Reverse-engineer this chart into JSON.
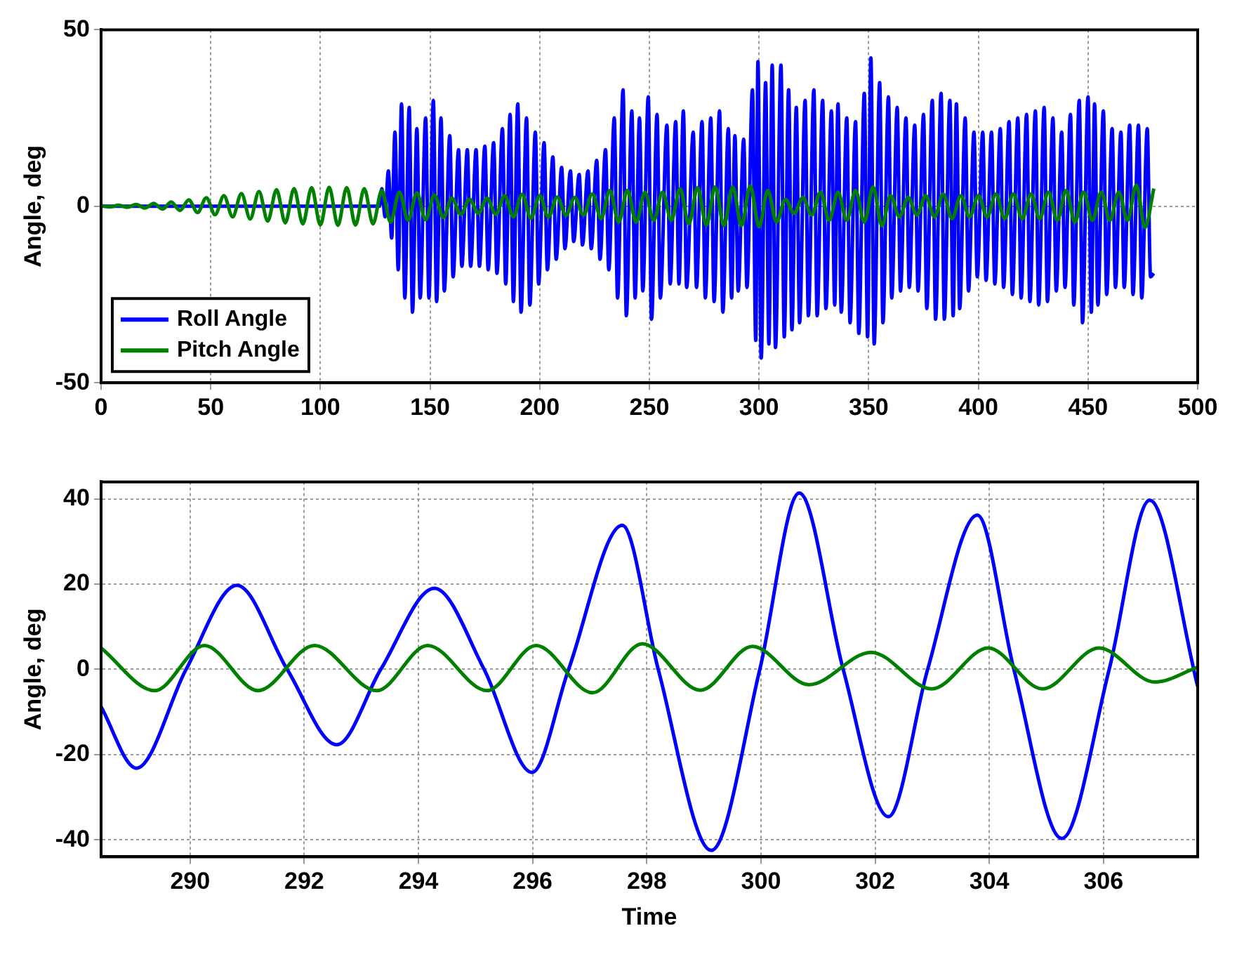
{
  "chart_data": [
    {
      "type": "line",
      "ylabel": "Angle, deg",
      "xlim": [
        0,
        500
      ],
      "ylim": [
        -50,
        50
      ],
      "xticks": [
        0,
        50,
        100,
        150,
        200,
        250,
        300,
        350,
        400,
        450,
        500
      ],
      "yticks": [
        -50,
        0,
        50
      ],
      "grid": true,
      "legend": "bottom left",
      "series": [
        {
          "name": "Roll Angle",
          "color": "#0000ff",
          "x": [
            0,
            127,
            128,
            129.5,
            131,
            132.5,
            134,
            135.5,
            137,
            138.5,
            140.5,
            142,
            144,
            145.5,
            148,
            149.5,
            151.5,
            153,
            155,
            156.5,
            159,
            160.5,
            163,
            164.5,
            167,
            168.5,
            171,
            172.5,
            175,
            176.5,
            179,
            180.5,
            183,
            184.5,
            186.5,
            188,
            190,
            191.5,
            194,
            195.5,
            198,
            199.5,
            202,
            203.5,
            206,
            207.5,
            210,
            211.5,
            214,
            215.5,
            218,
            219.5,
            222,
            223.5,
            226,
            227.5,
            230,
            231.5,
            234,
            235.5,
            238,
            239.5,
            242,
            243.5,
            245.5,
            247,
            249.5,
            251,
            253.5,
            255,
            258,
            259.5,
            262,
            263.5,
            265.5,
            267,
            270,
            271.5,
            274,
            275.5,
            278,
            279.5,
            282,
            283.5,
            286,
            287.5,
            289,
            290.5,
            293,
            294.5,
            297,
            298.5,
            299.5,
            301,
            303,
            304.5,
            306,
            307.5,
            310,
            311.5,
            313.5,
            315,
            317,
            318.5,
            321,
            322.5,
            325,
            326.5,
            329,
            330.5,
            333,
            334.5,
            336,
            337.5,
            340,
            341.5,
            344,
            345.5,
            348,
            349.5,
            351,
            352.5,
            355,
            356.5,
            359,
            360.5,
            363,
            364.5,
            367,
            368.5,
            371,
            372.5,
            375,
            376.5,
            379,
            380.5,
            383,
            384.5,
            387,
            388.5,
            390,
            391.5,
            394,
            395.5,
            398,
            399.5,
            402,
            403.5,
            406,
            407.5,
            410,
            411.5,
            414,
            415.5,
            418,
            419.5,
            422,
            423.5,
            426,
            427.5,
            430,
            431.5,
            434,
            435.5,
            438,
            439.5,
            442,
            443.5,
            446,
            447.5,
            450,
            451.5,
            453,
            454.5,
            457,
            458.5,
            461,
            462.5,
            465,
            466.5,
            469,
            470.5,
            473,
            474.5,
            477,
            478.5,
            480
          ],
          "values": [
            0,
            0,
            5,
            -3,
            10,
            -9,
            21,
            -18,
            29,
            -26,
            28,
            -30,
            22,
            -26,
            25,
            -26,
            30,
            -27,
            25,
            -24,
            20,
            -20,
            16,
            -17,
            16,
            -17,
            16,
            -17,
            17,
            -18,
            18,
            -19,
            22,
            -22,
            26,
            -27,
            29,
            -30,
            25,
            -28,
            21,
            -22,
            18,
            -18,
            14,
            -15,
            11,
            -12,
            10,
            -10,
            9,
            -11,
            10,
            -12,
            13,
            -15,
            16,
            -18,
            25,
            -26,
            33,
            -31,
            27,
            -26,
            25,
            -24,
            31,
            -32,
            26,
            -26,
            23,
            -22,
            24,
            -22,
            27,
            -23,
            21,
            -23,
            24,
            -26,
            25,
            -27,
            27,
            -30,
            22,
            -26,
            20,
            -24,
            19,
            -23,
            33,
            -38,
            41,
            -43,
            35,
            -39,
            40,
            -40,
            40,
            -37,
            33,
            -35,
            28,
            -33,
            30,
            -31,
            33,
            -31,
            30,
            -29,
            27,
            -28,
            29,
            -30,
            25,
            -33,
            24,
            -36,
            32,
            -37,
            42,
            -39,
            35,
            -33,
            31,
            -26,
            28,
            -24,
            25,
            -23,
            23,
            -24,
            26,
            -29,
            30,
            -32,
            32,
            -32,
            30,
            -31,
            29,
            -29,
            25,
            -24,
            21,
            -20,
            21,
            -21,
            21,
            -22,
            22,
            -23,
            24,
            -25,
            25,
            -26,
            26,
            -27,
            27,
            -28,
            28,
            -27,
            25,
            -24,
            21,
            -23,
            26,
            -28,
            30,
            -33,
            31,
            -30,
            29,
            -28,
            27,
            -25,
            22,
            -23,
            21,
            -23,
            23,
            -25,
            23,
            -26,
            22,
            -20,
            -19
          ]
        },
        {
          "name": "Pitch Angle",
          "color": "#008000",
          "x": [
            0,
            4,
            8,
            12,
            16,
            20,
            24,
            28,
            32,
            36,
            40,
            44,
            48,
            52,
            56,
            60,
            64,
            68,
            72,
            76,
            80,
            84,
            88,
            92,
            96,
            100,
            104,
            108,
            112,
            116,
            120,
            124,
            128,
            132,
            136,
            140,
            144,
            148,
            152,
            156,
            160,
            164,
            168,
            172,
            176,
            180,
            184,
            188,
            192,
            196,
            200,
            204,
            208,
            212,
            216,
            220,
            224,
            228,
            232,
            236,
            240,
            244,
            248,
            252,
            256,
            260,
            264,
            268,
            272,
            276,
            280,
            284,
            288,
            292,
            296,
            300,
            304,
            308,
            312,
            316,
            320,
            324,
            328,
            332,
            336,
            340,
            344,
            348,
            352,
            356,
            360,
            364,
            368,
            372,
            376,
            380,
            384,
            388,
            392,
            396,
            400,
            404,
            408,
            412,
            416,
            420,
            424,
            428,
            432,
            436,
            440,
            444,
            448,
            452,
            456,
            460,
            464,
            468,
            472,
            476,
            480
          ],
          "values": [
            0.2,
            -0.2,
            0.3,
            -0.3,
            0.5,
            -0.5,
            0.8,
            -0.8,
            1.2,
            -1.2,
            1.8,
            -1.8,
            2.4,
            -2.4,
            3,
            -3,
            3.6,
            -3.6,
            4.2,
            -4.2,
            4.7,
            -4.7,
            5,
            -5,
            5.3,
            -5.3,
            5.4,
            -5.4,
            5.3,
            -5.3,
            5,
            -5,
            4.5,
            -4.5,
            4,
            -4,
            3.8,
            -3.8,
            3.2,
            -3.2,
            2.3,
            -2.3,
            2,
            -2,
            2.3,
            -2.3,
            3,
            -3,
            3.4,
            -3.4,
            3,
            -3,
            2.6,
            -2.6,
            2.5,
            -2.5,
            3.5,
            -3.5,
            4.5,
            -4.5,
            4.5,
            -4.5,
            4,
            -4,
            4,
            -4,
            5,
            -5,
            5.3,
            -5.3,
            5.5,
            -5.5,
            5.5,
            -5.5,
            5.8,
            -5.8,
            4.5,
            -4.5,
            2,
            -2,
            2.5,
            -2.5,
            4,
            -4,
            4,
            -4,
            4.5,
            -4.5,
            5.5,
            -5.5,
            3,
            -3,
            2.5,
            -2.5,
            3,
            -3,
            3.5,
            -3.5,
            3,
            -3,
            3,
            -3,
            3.5,
            -3.5,
            3.5,
            -3.5,
            3.5,
            -3.5,
            4,
            -4,
            4.5,
            -4.5,
            4,
            -4,
            4,
            -4,
            4,
            -4,
            6,
            -6,
            5
          ]
        }
      ]
    },
    {
      "type": "line",
      "xlabel": "Time",
      "ylabel": "Angle, deg",
      "xlim": [
        288.44,
        307.65
      ],
      "ylim": [
        -44,
        44
      ],
      "xticks": [
        290,
        292,
        294,
        296,
        298,
        300,
        302,
        304,
        306
      ],
      "yticks": [
        -40,
        -20,
        0,
        20,
        40
      ],
      "grid": true,
      "series": [
        {
          "color": "#0000ff",
          "x": [
            288.44,
            289.06,
            289.93,
            290.82,
            291.7,
            292.57,
            293.34,
            294.28,
            295.15,
            295.99,
            296.63,
            297.57,
            298.2,
            299.13,
            299.98,
            300.67,
            301.44,
            302.23,
            302.92,
            303.79,
            304.43,
            305.27,
            306.1,
            306.81,
            307.65
          ],
          "values": [
            -8.8,
            -23.2,
            0,
            19.7,
            0,
            -17.7,
            0,
            19,
            0,
            -24.2,
            0,
            33.8,
            0,
            -42.5,
            0,
            41.4,
            0,
            -34.6,
            0,
            36.2,
            0,
            -39.7,
            0,
            39.7,
            -4
          ]
        },
        {
          "color": "#008000",
          "x": [
            288.44,
            289.38,
            290.25,
            291.19,
            292.18,
            293.27,
            294.16,
            295.2,
            296.06,
            297.05,
            297.92,
            298.94,
            299.85,
            300.84,
            301.93,
            302.99,
            303.98,
            304.93,
            305.92,
            306.9,
            307.65
          ],
          "values": [
            5,
            -5,
            5.6,
            -5,
            5.6,
            -5,
            5.6,
            -5,
            5.6,
            -5.5,
            6,
            -4.9,
            5.4,
            -3.6,
            4,
            -4.6,
            5,
            -4.6,
            5,
            -3,
            0.5
          ]
        }
      ]
    }
  ]
}
